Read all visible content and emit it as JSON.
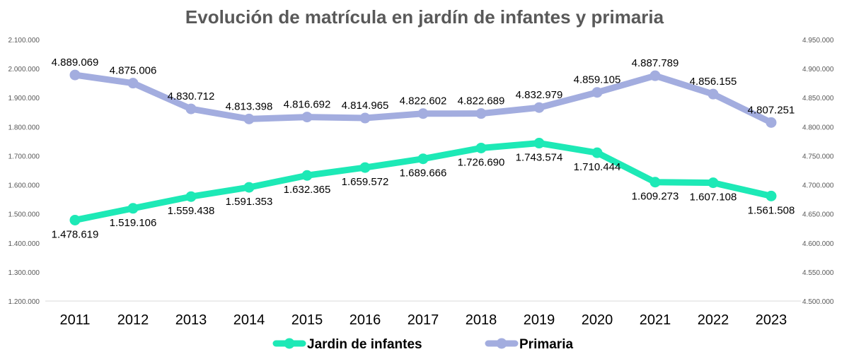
{
  "chart_data": {
    "type": "line",
    "title": "Evolución de matrícula en jardín de infantes y primaria",
    "categories": [
      "2011",
      "2012",
      "2013",
      "2014",
      "2015",
      "2016",
      "2017",
      "2018",
      "2019",
      "2020",
      "2021",
      "2022",
      "2023"
    ],
    "series": [
      {
        "name": "Jardin de infantes",
        "axis": "left",
        "color": "#1de9b6",
        "values": [
          1478619,
          1519106,
          1559438,
          1591353,
          1632365,
          1659572,
          1689666,
          1726690,
          1743574,
          1710444,
          1609273,
          1607108,
          1561508
        ],
        "labels": [
          "1.478.619",
          "1.519.106",
          "1.559.438",
          "1.591.353",
          "1.632.365",
          "1.659.572",
          "1.689.666",
          "1.726.690",
          "1.743.574",
          "1.710.444",
          "1.609.273",
          "1.607.108",
          "1.561.508"
        ],
        "label_position": "below"
      },
      {
        "name": "Primaria",
        "axis": "right",
        "color": "#a3addf",
        "values": [
          4889069,
          4875006,
          4830712,
          4813398,
          4816692,
          4814965,
          4822602,
          4822689,
          4832979,
          4859105,
          4887789,
          4856155,
          4807251
        ],
        "labels": [
          "4.889.069",
          "4.875.006",
          "4.830.712",
          "4.813.398",
          "4.816.692",
          "4.814.965",
          "4.822.602",
          "4.822.689",
          "4.832.979",
          "4.859.105",
          "4.887.789",
          "4.856.155",
          "4.807.251"
        ],
        "label_position": "above"
      }
    ],
    "y_left": {
      "ylim": [
        1200000,
        2100000
      ],
      "ticks": [
        "1.200.000",
        "1.300.000",
        "1.400.000",
        "1.500.000",
        "1.600.000",
        "1.700.000",
        "1.800.000",
        "1.900.000",
        "2.000.000",
        "2.100.000"
      ]
    },
    "y_right": {
      "ylim": [
        4500000,
        4950000
      ],
      "ticks": [
        "4.500.000",
        "4.550.000",
        "4.600.000",
        "4.650.000",
        "4.700.000",
        "4.750.000",
        "4.800.000",
        "4.850.000",
        "4.900.000",
        "4.950.000"
      ]
    },
    "grid": false,
    "legend": "bottom"
  }
}
